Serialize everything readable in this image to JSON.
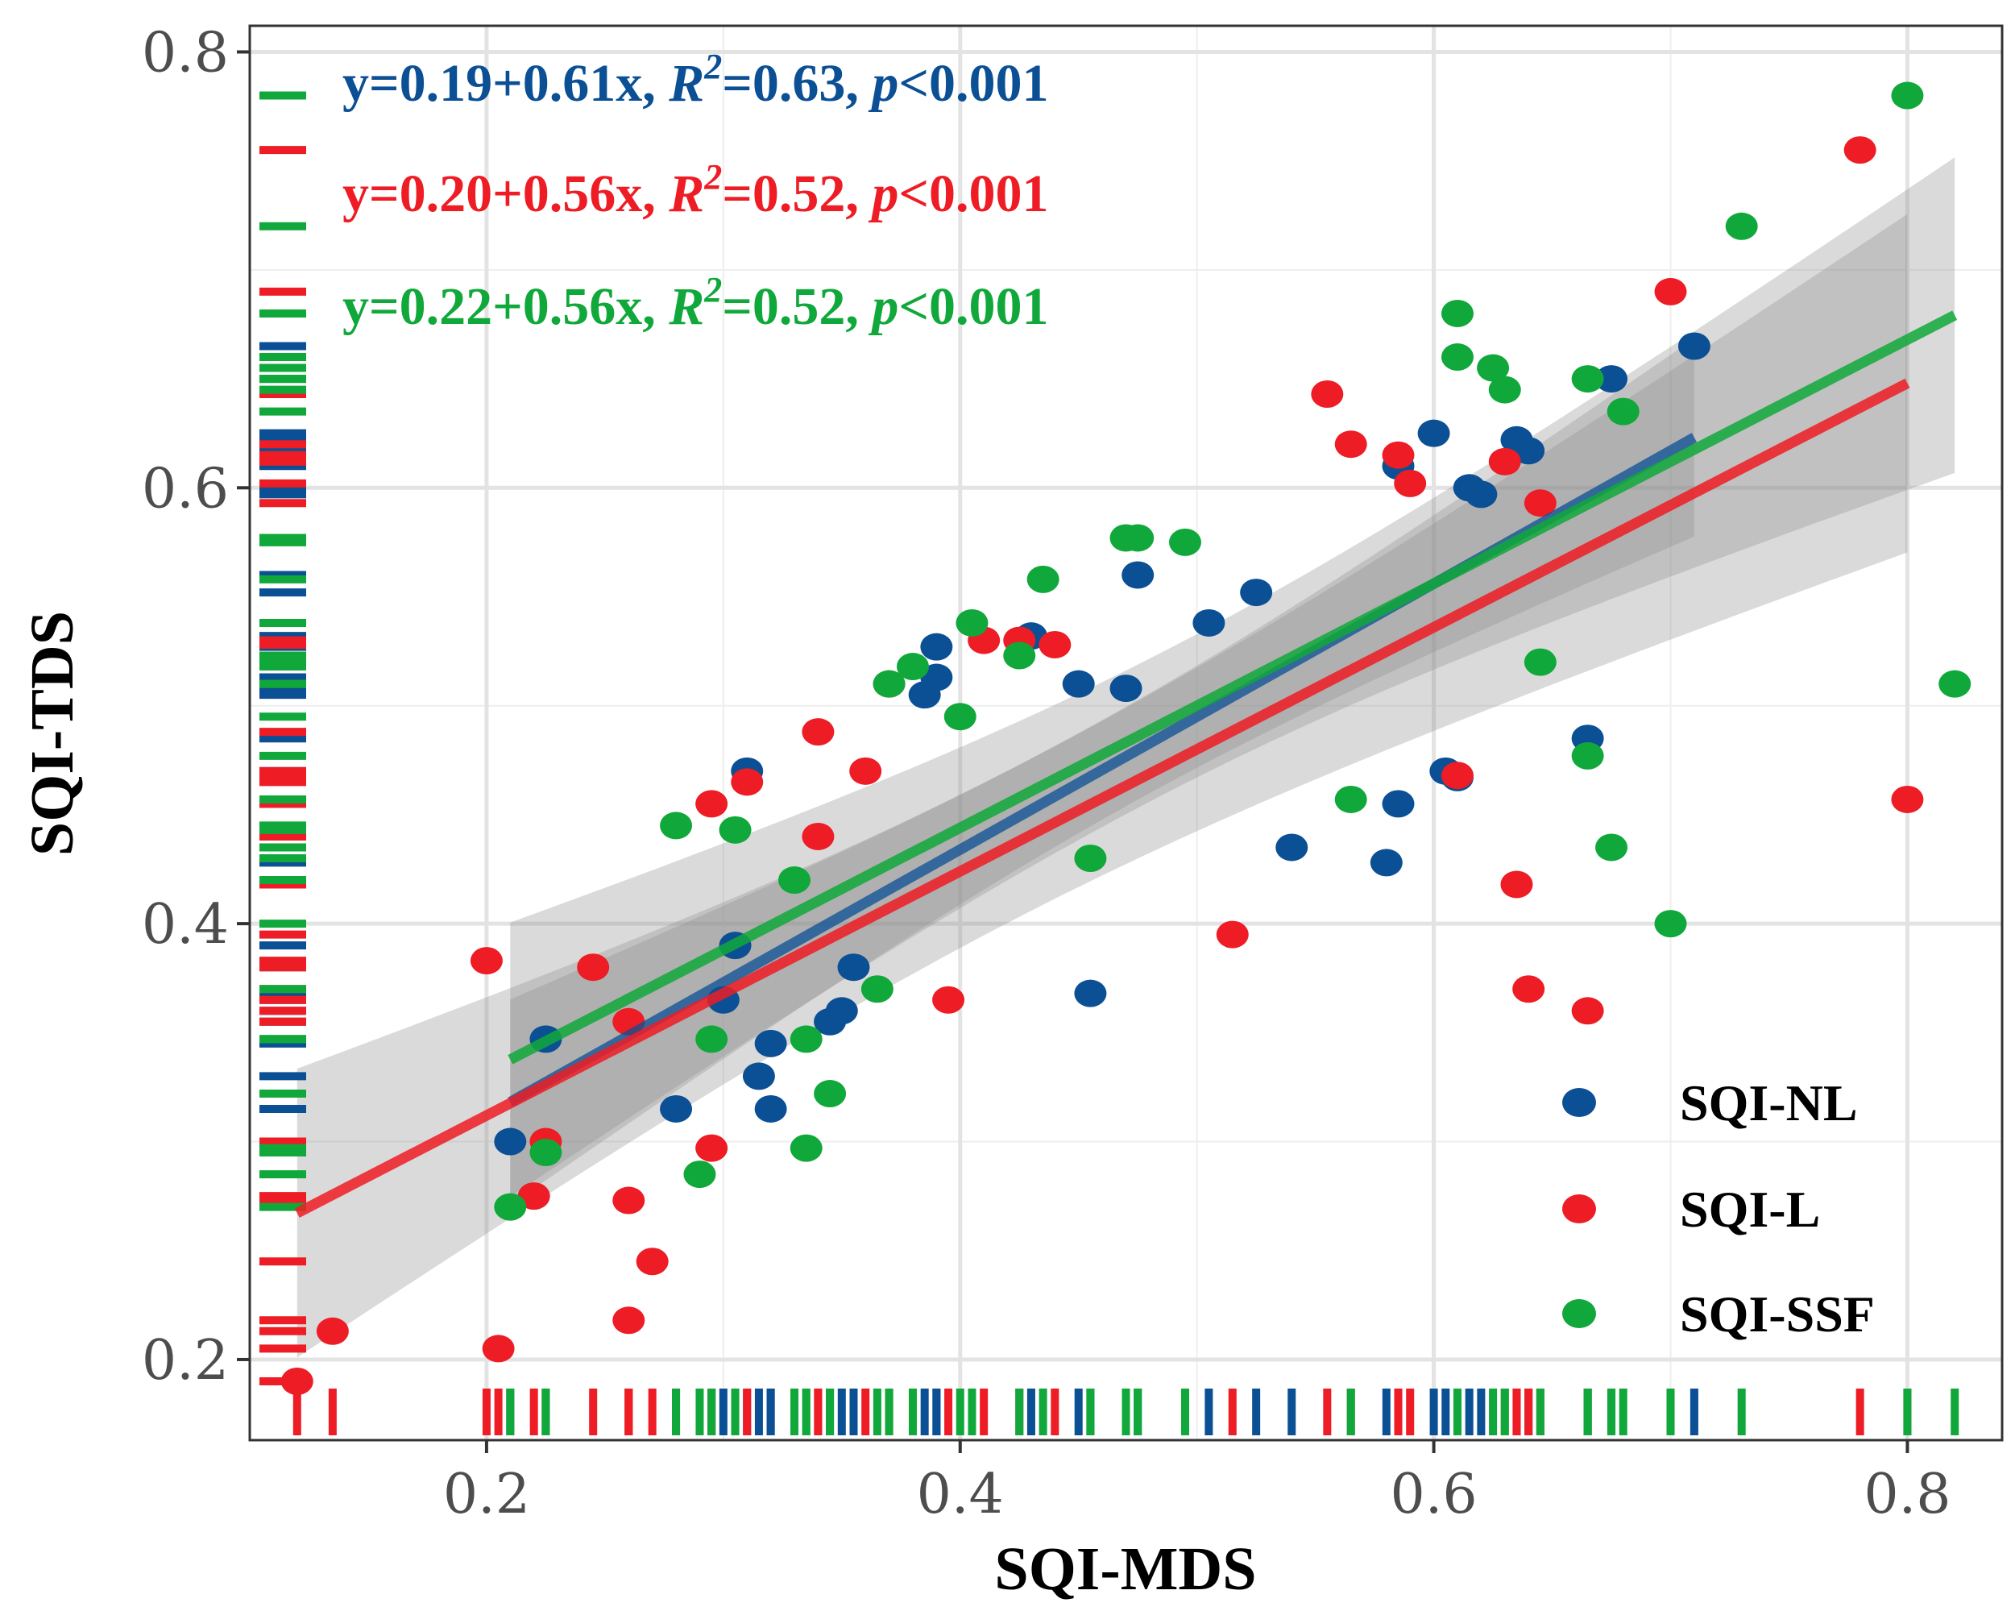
{
  "chart_data": {
    "type": "scatter",
    "xlabel": "SQI-MDS",
    "ylabel": "SQI-TDS",
    "xlim": [
      0.1,
      0.84
    ],
    "ylim": [
      0.163,
      0.812
    ],
    "xticks": [
      0.2,
      0.4,
      0.6,
      0.8
    ],
    "yticks": [
      0.2,
      0.4,
      0.6,
      0.8
    ],
    "xtick_labels": [
      "0.2",
      "0.4",
      "0.6",
      "0.8"
    ],
    "ytick_labels": [
      "0.2",
      "0.4",
      "0.6",
      "0.8"
    ],
    "grid": true,
    "legend_position": "bottom-right",
    "colors": {
      "SQI-NL": "#0b4f94",
      "SQI-L": "#ee1c24",
      "SQI-SSF": "#10a83a"
    },
    "equations": [
      {
        "series": "SQI-NL",
        "prefix": "y=0.19+0.61x, ",
        "r_label": "R",
        "sup": "2",
        "stat": "=0.63, ",
        "p_label": "p",
        "p_rest": "<0.001",
        "color": "#0b4f94"
      },
      {
        "series": "SQI-L",
        "prefix": "y=0.20+0.56x, ",
        "r_label": "R",
        "sup": "2",
        "stat": "=0.52, ",
        "p_label": "p",
        "p_rest": "<0.001",
        "color": "#ee1c24"
      },
      {
        "series": "SQI-SSF",
        "prefix": "y=0.22+0.56x, ",
        "r_label": "R",
        "sup": "2",
        "stat": "=0.52, ",
        "p_label": "p",
        "p_rest": "<0.001",
        "color": "#10a83a"
      }
    ],
    "series": [
      {
        "name": "SQI-NL",
        "color": "#0b4f94",
        "fit": {
          "intercept": 0.19,
          "slope": 0.61,
          "x_range": [
            0.21,
            0.71
          ]
        },
        "points": [
          [
            0.21,
            0.3
          ],
          [
            0.225,
            0.347
          ],
          [
            0.28,
            0.315
          ],
          [
            0.3,
            0.365
          ],
          [
            0.305,
            0.39
          ],
          [
            0.31,
            0.47
          ],
          [
            0.315,
            0.33
          ],
          [
            0.32,
            0.345
          ],
          [
            0.32,
            0.315
          ],
          [
            0.345,
            0.355
          ],
          [
            0.35,
            0.36
          ],
          [
            0.355,
            0.38
          ],
          [
            0.385,
            0.505
          ],
          [
            0.39,
            0.513
          ],
          [
            0.39,
            0.527
          ],
          [
            0.43,
            0.532
          ],
          [
            0.45,
            0.51
          ],
          [
            0.455,
            0.368
          ],
          [
            0.47,
            0.508
          ],
          [
            0.475,
            0.56
          ],
          [
            0.505,
            0.538
          ],
          [
            0.525,
            0.552
          ],
          [
            0.54,
            0.435
          ],
          [
            0.58,
            0.428
          ],
          [
            0.585,
            0.455
          ],
          [
            0.585,
            0.61
          ],
          [
            0.6,
            0.625
          ],
          [
            0.605,
            0.47
          ],
          [
            0.61,
            0.467
          ],
          [
            0.615,
            0.6
          ],
          [
            0.62,
            0.597
          ],
          [
            0.635,
            0.622
          ],
          [
            0.64,
            0.617
          ],
          [
            0.665,
            0.485
          ],
          [
            0.675,
            0.65
          ],
          [
            0.71,
            0.665
          ]
        ]
      },
      {
        "name": "SQI-L",
        "color": "#ee1c24",
        "fit": {
          "intercept": 0.2,
          "slope": 0.56,
          "x_range": [
            0.12,
            0.8
          ]
        },
        "points": [
          [
            0.12,
            0.19
          ],
          [
            0.135,
            0.213
          ],
          [
            0.2,
            0.383
          ],
          [
            0.205,
            0.205
          ],
          [
            0.22,
            0.275
          ],
          [
            0.225,
            0.3
          ],
          [
            0.245,
            0.38
          ],
          [
            0.26,
            0.355
          ],
          [
            0.26,
            0.273
          ],
          [
            0.26,
            0.218
          ],
          [
            0.27,
            0.245
          ],
          [
            0.295,
            0.455
          ],
          [
            0.295,
            0.297
          ],
          [
            0.31,
            0.465
          ],
          [
            0.34,
            0.488
          ],
          [
            0.34,
            0.44
          ],
          [
            0.36,
            0.47
          ],
          [
            0.37,
            0.51
          ],
          [
            0.395,
            0.365
          ],
          [
            0.41,
            0.53
          ],
          [
            0.425,
            0.53
          ],
          [
            0.44,
            0.528
          ],
          [
            0.515,
            0.395
          ],
          [
            0.555,
            0.643
          ],
          [
            0.565,
            0.62
          ],
          [
            0.585,
            0.615
          ],
          [
            0.59,
            0.602
          ],
          [
            0.61,
            0.468
          ],
          [
            0.63,
            0.612
          ],
          [
            0.635,
            0.418
          ],
          [
            0.64,
            0.37
          ],
          [
            0.645,
            0.593
          ],
          [
            0.665,
            0.36
          ],
          [
            0.7,
            0.69
          ],
          [
            0.78,
            0.755
          ],
          [
            0.8,
            0.457
          ]
        ]
      },
      {
        "name": "SQI-SSF",
        "color": "#10a83a",
        "fit": {
          "intercept": 0.22,
          "slope": 0.56,
          "x_range": [
            0.21,
            0.82
          ]
        },
        "points": [
          [
            0.21,
            0.27
          ],
          [
            0.225,
            0.295
          ],
          [
            0.28,
            0.445
          ],
          [
            0.29,
            0.285
          ],
          [
            0.295,
            0.347
          ],
          [
            0.305,
            0.443
          ],
          [
            0.33,
            0.42
          ],
          [
            0.335,
            0.347
          ],
          [
            0.335,
            0.297
          ],
          [
            0.345,
            0.322
          ],
          [
            0.365,
            0.37
          ],
          [
            0.37,
            0.51
          ],
          [
            0.38,
            0.518
          ],
          [
            0.4,
            0.495
          ],
          [
            0.405,
            0.538
          ],
          [
            0.425,
            0.523
          ],
          [
            0.435,
            0.558
          ],
          [
            0.455,
            0.43
          ],
          [
            0.47,
            0.577
          ],
          [
            0.475,
            0.577
          ],
          [
            0.495,
            0.575
          ],
          [
            0.565,
            0.457
          ],
          [
            0.61,
            0.68
          ],
          [
            0.61,
            0.66
          ],
          [
            0.625,
            0.655
          ],
          [
            0.63,
            0.645
          ],
          [
            0.645,
            0.52
          ],
          [
            0.665,
            0.65
          ],
          [
            0.665,
            0.477
          ],
          [
            0.675,
            0.435
          ],
          [
            0.68,
            0.635
          ],
          [
            0.7,
            0.4
          ],
          [
            0.73,
            0.72
          ],
          [
            0.8,
            0.78
          ],
          [
            0.82,
            0.51
          ]
        ]
      }
    ]
  }
}
